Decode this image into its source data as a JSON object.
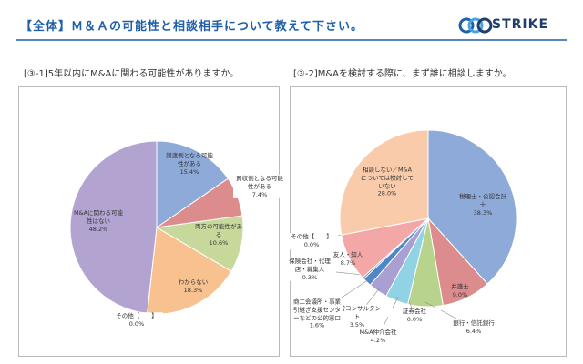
{
  "header": {
    "title": "【全体】Ｍ＆Ａの可能性と相談相手について教えて下さい。",
    "logo": "STRIKE"
  },
  "chart_data": [
    {
      "type": "pie",
      "title": "[③-1]5年以内にM&Aに関わる可能性がありますか。",
      "categories": [
        "譲渡側となる可能性がある",
        "買収側となる可能性がある",
        "両方の可能性がある",
        "わからない",
        "その他【　　】",
        "M&Aに関わる可能性はない"
      ],
      "values": [
        15.4,
        7.4,
        10.6,
        18.3,
        0.0,
        48.2
      ],
      "value_labels": [
        "15.4%",
        "7.4%",
        "10.6%",
        "18.3%",
        "0.0%",
        "48.2%"
      ],
      "colors": [
        "#8eaad8",
        "#dc8c8c",
        "#c6d99b",
        "#f8c190",
        "#e0e0e0",
        "#b3a3d1"
      ]
    },
    {
      "type": "pie",
      "title": "[③-2]M&Aを検討する際に、まず誰に相談しますか。",
      "categories": [
        "税理士・公認会計士",
        "弁護士",
        "銀行・信託銀行",
        "証券会社",
        "M&A仲介会社",
        "経営コンサルタント",
        "商工会議所・事業引継ぎ支援センターなどの公的窓口",
        "保険会社・代理店・募集人",
        "友人・知人",
        "その他【　　】",
        "相談しない／M&Aについては検討していない"
      ],
      "values": [
        38.3,
        9.0,
        6.4,
        0.0,
        4.2,
        3.5,
        1.6,
        0.3,
        8.7,
        0.0,
        28.0
      ],
      "value_labels": [
        "38.3%",
        "9.0%",
        "6.4%",
        "0.0%",
        "4.2%",
        "3.5%",
        "1.6%",
        "0.3%",
        "8.7%",
        "0.0%",
        "28.0%"
      ],
      "colors": [
        "#8eaad8",
        "#dc8c8c",
        "#b8d38b",
        "#7f6fb8",
        "#8fd3e4",
        "#a99fd3",
        "#4f86c6",
        "#2f5fb0",
        "#f3a7a7",
        "#d0d0d0",
        "#f9cbaa"
      ]
    }
  ]
}
